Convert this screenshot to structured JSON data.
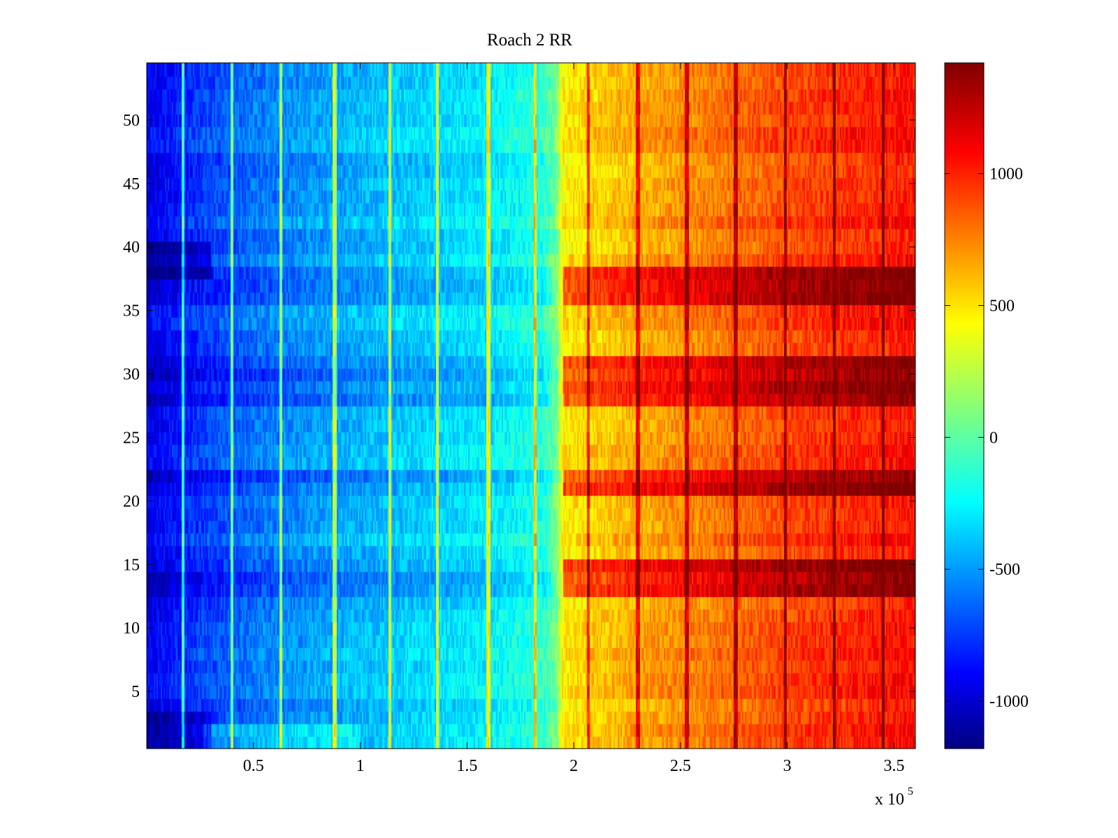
{
  "chart_data": {
    "type": "heatmap",
    "title": "Roach 2 RR",
    "xlabel": "",
    "ylabel": "",
    "x_multiplier_label": "x 10",
    "x_multiplier_exponent": "5",
    "xlim": [
      0.0,
      3.6
    ],
    "ylim": [
      0.5,
      54.5
    ],
    "rows": 54,
    "x_ticks": [
      0.5,
      1,
      1.5,
      2,
      2.5,
      3,
      3.5
    ],
    "x_tick_labels": [
      "0.5",
      "1",
      "1.5",
      "2",
      "2.5",
      "3",
      "3.5"
    ],
    "y_ticks": [
      5,
      10,
      15,
      20,
      25,
      30,
      35,
      40,
      45,
      50
    ],
    "y_tick_labels": [
      "5",
      "10",
      "15",
      "20",
      "25",
      "30",
      "35",
      "40",
      "45",
      "50"
    ],
    "colormap": "jet",
    "clim": [
      -1180,
      1420
    ],
    "colorbar_ticks": [
      -1000,
      -500,
      0,
      500,
      1000
    ],
    "colorbar_tick_labels": [
      "-1000",
      "-500",
      "0",
      "500",
      "1000"
    ],
    "column_profile": [
      [
        0.0,
        -900
      ],
      [
        0.25,
        -700
      ],
      [
        0.5,
        -560
      ],
      [
        0.8,
        -440
      ],
      [
        1.2,
        -330
      ],
      [
        1.6,
        -240
      ],
      [
        1.85,
        -100
      ],
      [
        1.92,
        80
      ],
      [
        1.95,
        480
      ],
      [
        2.3,
        660
      ],
      [
        2.7,
        800
      ],
      [
        3.1,
        950
      ],
      [
        3.6,
        1060
      ]
    ],
    "hot_rows": [
      13,
      14,
      15,
      21,
      22,
      28,
      29,
      30,
      31,
      36,
      37,
      38
    ],
    "cool_rows": [
      1,
      2,
      3,
      38,
      39,
      40
    ],
    "vertical_streaks_x": [
      0.17,
      0.4,
      0.63,
      0.88,
      1.14,
      1.36,
      1.6,
      1.82,
      2.07,
      2.3,
      2.53,
      2.76,
      2.99,
      3.22,
      3.45
    ]
  }
}
